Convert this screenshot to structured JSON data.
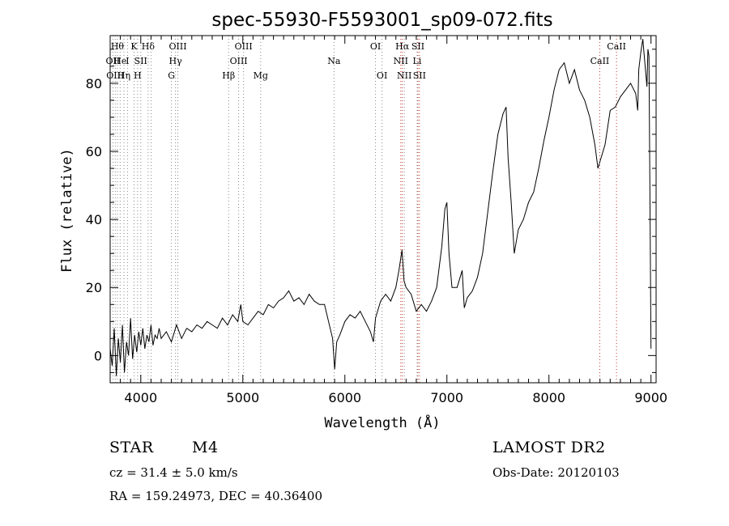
{
  "chart_data": {
    "type": "line",
    "title": "spec-55930-F5593001_sp09-072.fits",
    "xlabel": "Wavelength (Å)",
    "ylabel": "Flux (relative)",
    "xlim": [
      3700,
      9050
    ],
    "ylim": [
      -8,
      94
    ],
    "x_ticks": [
      4000,
      5000,
      6000,
      7000,
      8000,
      9000
    ],
    "y_ticks": [
      0,
      20,
      40,
      60,
      80
    ],
    "grid": false,
    "series": [
      {
        "color": "#000000",
        "points": [
          [
            3700,
            2
          ],
          [
            3720,
            -3
          ],
          [
            3740,
            8
          ],
          [
            3760,
            -6
          ],
          [
            3780,
            5
          ],
          [
            3800,
            -2
          ],
          [
            3820,
            9
          ],
          [
            3840,
            -5
          ],
          [
            3860,
            4
          ],
          [
            3880,
            0
          ],
          [
            3900,
            11
          ],
          [
            3920,
            -1
          ],
          [
            3940,
            6
          ],
          [
            3960,
            1
          ],
          [
            3980,
            7
          ],
          [
            4000,
            3
          ],
          [
            4020,
            8
          ],
          [
            4040,
            2
          ],
          [
            4060,
            6
          ],
          [
            4080,
            4
          ],
          [
            4100,
            9
          ],
          [
            4120,
            3
          ],
          [
            4140,
            6
          ],
          [
            4160,
            5
          ],
          [
            4180,
            8
          ],
          [
            4200,
            5
          ],
          [
            4250,
            7
          ],
          [
            4300,
            4
          ],
          [
            4350,
            9
          ],
          [
            4400,
            5
          ],
          [
            4450,
            8
          ],
          [
            4500,
            7
          ],
          [
            4550,
            9
          ],
          [
            4600,
            8
          ],
          [
            4650,
            10
          ],
          [
            4700,
            9
          ],
          [
            4750,
            8
          ],
          [
            4800,
            11
          ],
          [
            4850,
            9
          ],
          [
            4900,
            12
          ],
          [
            4950,
            10
          ],
          [
            4980,
            15
          ],
          [
            5000,
            10
          ],
          [
            5050,
            9
          ],
          [
            5100,
            11
          ],
          [
            5150,
            13
          ],
          [
            5200,
            12
          ],
          [
            5250,
            15
          ],
          [
            5300,
            14
          ],
          [
            5350,
            16
          ],
          [
            5400,
            17
          ],
          [
            5450,
            19
          ],
          [
            5500,
            16
          ],
          [
            5550,
            17
          ],
          [
            5600,
            15
          ],
          [
            5650,
            18
          ],
          [
            5700,
            16
          ],
          [
            5750,
            15
          ],
          [
            5800,
            15
          ],
          [
            5840,
            10
          ],
          [
            5880,
            5
          ],
          [
            5900,
            -4
          ],
          [
            5920,
            4
          ],
          [
            5950,
            6
          ],
          [
            6000,
            10
          ],
          [
            6050,
            12
          ],
          [
            6100,
            11
          ],
          [
            6150,
            13
          ],
          [
            6200,
            10
          ],
          [
            6250,
            7
          ],
          [
            6280,
            4
          ],
          [
            6300,
            11
          ],
          [
            6350,
            16
          ],
          [
            6400,
            18
          ],
          [
            6450,
            16
          ],
          [
            6500,
            20
          ],
          [
            6530,
            25
          ],
          [
            6560,
            31
          ],
          [
            6580,
            22
          ],
          [
            6600,
            20
          ],
          [
            6650,
            18
          ],
          [
            6700,
            13
          ],
          [
            6750,
            15
          ],
          [
            6800,
            13
          ],
          [
            6850,
            16
          ],
          [
            6900,
            20
          ],
          [
            6950,
            32
          ],
          [
            6980,
            43
          ],
          [
            7000,
            45
          ],
          [
            7020,
            30
          ],
          [
            7050,
            20
          ],
          [
            7100,
            20
          ],
          [
            7150,
            25
          ],
          [
            7170,
            14
          ],
          [
            7200,
            17
          ],
          [
            7250,
            19
          ],
          [
            7300,
            23
          ],
          [
            7350,
            30
          ],
          [
            7400,
            42
          ],
          [
            7450,
            54
          ],
          [
            7500,
            65
          ],
          [
            7550,
            71
          ],
          [
            7580,
            73
          ],
          [
            7600,
            58
          ],
          [
            7630,
            45
          ],
          [
            7660,
            30
          ],
          [
            7700,
            37
          ],
          [
            7750,
            40
          ],
          [
            7800,
            45
          ],
          [
            7850,
            48
          ],
          [
            7900,
            55
          ],
          [
            7950,
            63
          ],
          [
            8000,
            70
          ],
          [
            8050,
            78
          ],
          [
            8100,
            84
          ],
          [
            8150,
            86
          ],
          [
            8200,
            80
          ],
          [
            8250,
            84
          ],
          [
            8300,
            78
          ],
          [
            8350,
            75
          ],
          [
            8400,
            70
          ],
          [
            8450,
            62
          ],
          [
            8480,
            55
          ],
          [
            8500,
            57
          ],
          [
            8550,
            62
          ],
          [
            8600,
            72
          ],
          [
            8650,
            73
          ],
          [
            8700,
            76
          ],
          [
            8750,
            78
          ],
          [
            8800,
            80
          ],
          [
            8850,
            77
          ],
          [
            8870,
            72
          ],
          [
            8880,
            84
          ],
          [
            8900,
            89
          ],
          [
            8920,
            93
          ],
          [
            8940,
            86
          ],
          [
            8960,
            79
          ],
          [
            8970,
            90
          ],
          [
            8980,
            88
          ],
          [
            9000,
            2
          ]
        ]
      }
    ],
    "lines": [
      {
        "x": 3727,
        "label": "OII",
        "row": 1,
        "color": "gray"
      },
      {
        "x": 3750,
        "label": "OIII",
        "row": 2,
        "color": "gray"
      },
      {
        "x": 3771,
        "label": "Hθ",
        "row": 0,
        "color": "gray"
      },
      {
        "x": 3798,
        "label": "He",
        "row": 1,
        "color": "gray"
      },
      {
        "x": 3835,
        "label": "Hη",
        "row": 2,
        "color": "gray"
      },
      {
        "x": 3870,
        "label": "I",
        "row": 1,
        "color": "gray"
      },
      {
        "x": 3934,
        "label": "K",
        "row": 0,
        "color": "gray"
      },
      {
        "x": 3969,
        "label": "H",
        "row": 2,
        "color": "gray"
      },
      {
        "x": 4000,
        "label": "SII",
        "row": 1,
        "color": "gray"
      },
      {
        "x": 4072,
        "label": "Hδ",
        "row": 0,
        "color": "gray"
      },
      {
        "x": 4102,
        "label": "",
        "row": 1,
        "color": "gray"
      },
      {
        "x": 4300,
        "label": "G",
        "row": 2,
        "color": "gray"
      },
      {
        "x": 4340,
        "label": "Hγ",
        "row": 1,
        "color": "gray"
      },
      {
        "x": 4363,
        "label": "OIII",
        "row": 0,
        "color": "gray"
      },
      {
        "x": 4861,
        "label": "Hβ",
        "row": 2,
        "color": "gray"
      },
      {
        "x": 4959,
        "label": "OIII",
        "row": 1,
        "color": "gray"
      },
      {
        "x": 5007,
        "label": "OIII",
        "row": 0,
        "color": "gray"
      },
      {
        "x": 5175,
        "label": "Mg",
        "row": 2,
        "color": "gray"
      },
      {
        "x": 5894,
        "label": "Na",
        "row": 1,
        "color": "gray"
      },
      {
        "x": 6300,
        "label": "OI",
        "row": 0,
        "color": "gray"
      },
      {
        "x": 6364,
        "label": "OI",
        "row": 2,
        "color": "gray"
      },
      {
        "x": 6548,
        "label": "NII",
        "row": 1,
        "color": "red"
      },
      {
        "x": 6563,
        "label": "Hα",
        "row": 0,
        "color": "red"
      },
      {
        "x": 6583,
        "label": "NII",
        "row": 2,
        "color": "gray"
      },
      {
        "x": 6708,
        "label": "Li",
        "row": 1,
        "color": "gray"
      },
      {
        "x": 6716,
        "label": "SII",
        "row": 0,
        "color": "red"
      },
      {
        "x": 6731,
        "label": "SII",
        "row": 2,
        "color": "red"
      },
      {
        "x": 8498,
        "label": "CaII",
        "row": 1,
        "color": "red"
      },
      {
        "x": 8662,
        "label": "CaII",
        "row": 0,
        "color": "red"
      }
    ]
  },
  "info": {
    "object_class": "STAR",
    "subclass": "M4",
    "survey": "LAMOST DR2",
    "redshift": "cz = 31.4 ± 5.0 km/s",
    "obs_date": "Obs-Date: 20120103",
    "coords": "RA = 159.24973, DEC =  40.36400"
  }
}
